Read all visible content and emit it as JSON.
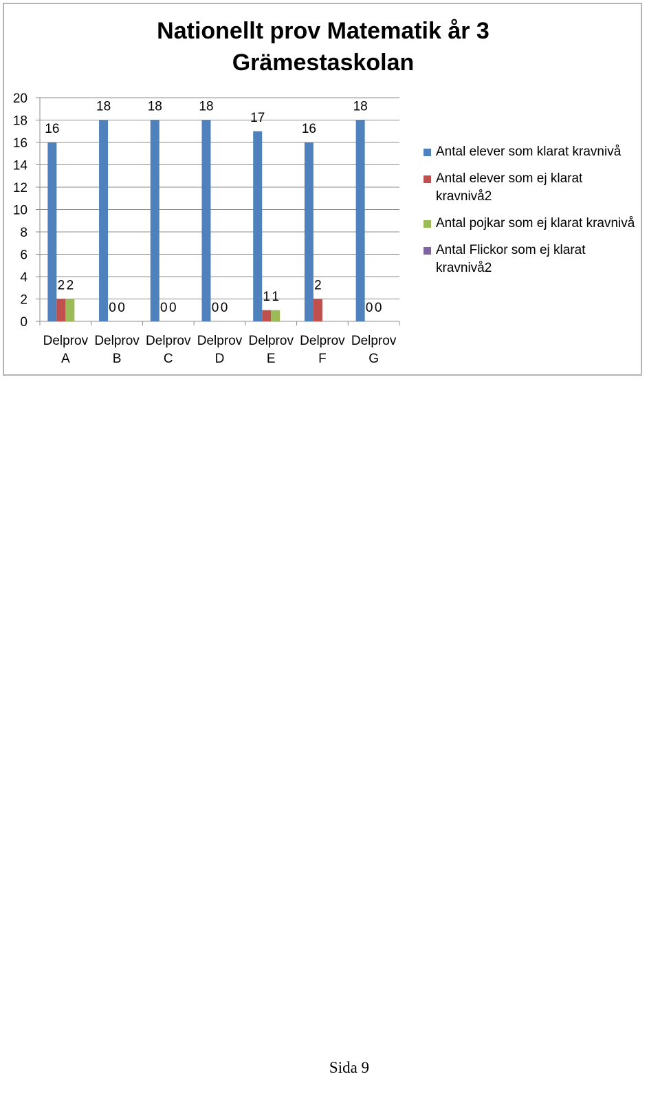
{
  "chart_data": {
    "type": "bar",
    "title_lines": [
      "Nationellt prov Matematik år 3",
      "Grämestaskolan"
    ],
    "categories": [
      [
        "Delprov",
        "A"
      ],
      [
        "Delprov",
        "B"
      ],
      [
        "Delprov",
        "C"
      ],
      [
        "Delprov",
        "D"
      ],
      [
        "Delprov",
        "E"
      ],
      [
        "Delprov",
        "F"
      ],
      [
        "Delprov",
        "G"
      ]
    ],
    "series": [
      {
        "name": "Antal elever som klarat kravnivå",
        "color": "#4f81bd",
        "values": [
          16,
          18,
          18,
          18,
          17,
          16,
          18
        ],
        "labels": [
          "16",
          "18",
          "18",
          "18",
          "17",
          "16",
          "18"
        ]
      },
      {
        "name": "Antal elever som ej klarat kravnivå2",
        "color": "#c0504d",
        "values": [
          2,
          0,
          0,
          0,
          1,
          2,
          0
        ],
        "labels": [
          "2",
          "0",
          "0",
          "0",
          "1",
          "2",
          "0"
        ]
      },
      {
        "name": "Antal pojkar som ej klarat kravnivå",
        "color": "#9bbb59",
        "values": [
          2,
          0,
          0,
          0,
          1,
          null,
          0
        ],
        "labels": [
          "2",
          "0",
          "0",
          "0",
          "1",
          "",
          "0"
        ]
      },
      {
        "name": "Antal Flickor som ej klarat kravnivå2",
        "color": "#8064a2",
        "values": [
          null,
          null,
          null,
          null,
          null,
          null,
          null
        ],
        "labels": [
          "",
          "",
          "",
          "",
          "",
          "",
          ""
        ]
      }
    ],
    "ylim": [
      0,
      20
    ],
    "yticks": [
      "0",
      "2",
      "4",
      "6",
      "8",
      "10",
      "12",
      "14",
      "16",
      "18",
      "20"
    ],
    "grid": true,
    "legend_position": "right"
  },
  "footer": {
    "page_label": "Sida 9"
  }
}
